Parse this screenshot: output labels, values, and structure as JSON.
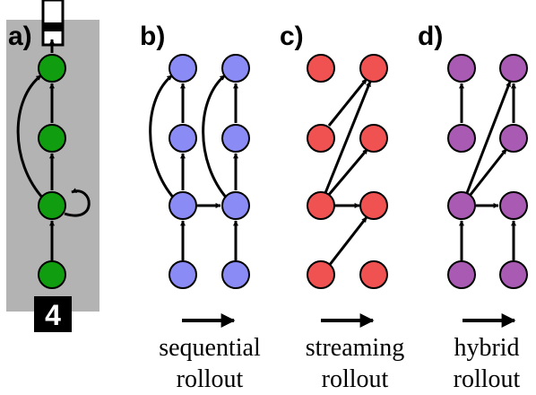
{
  "panels": {
    "a": {
      "label": "a)",
      "digit": "4"
    },
    "b": {
      "label": "b)",
      "caption_line1": "sequential",
      "caption_line2": "rollout"
    },
    "c": {
      "label": "c)",
      "caption_line1": "streaming",
      "caption_line2": "rollout"
    },
    "d": {
      "label": "d)",
      "caption_line1": "hybrid",
      "caption_line2": "rollout"
    }
  },
  "colors": {
    "panel_a_node": "#109d10",
    "panel_b_node": "#8b8bf5",
    "panel_c_node": "#f05252",
    "panel_d_node": "#a95bb3",
    "panel_a_background": "#b3b3b3"
  }
}
